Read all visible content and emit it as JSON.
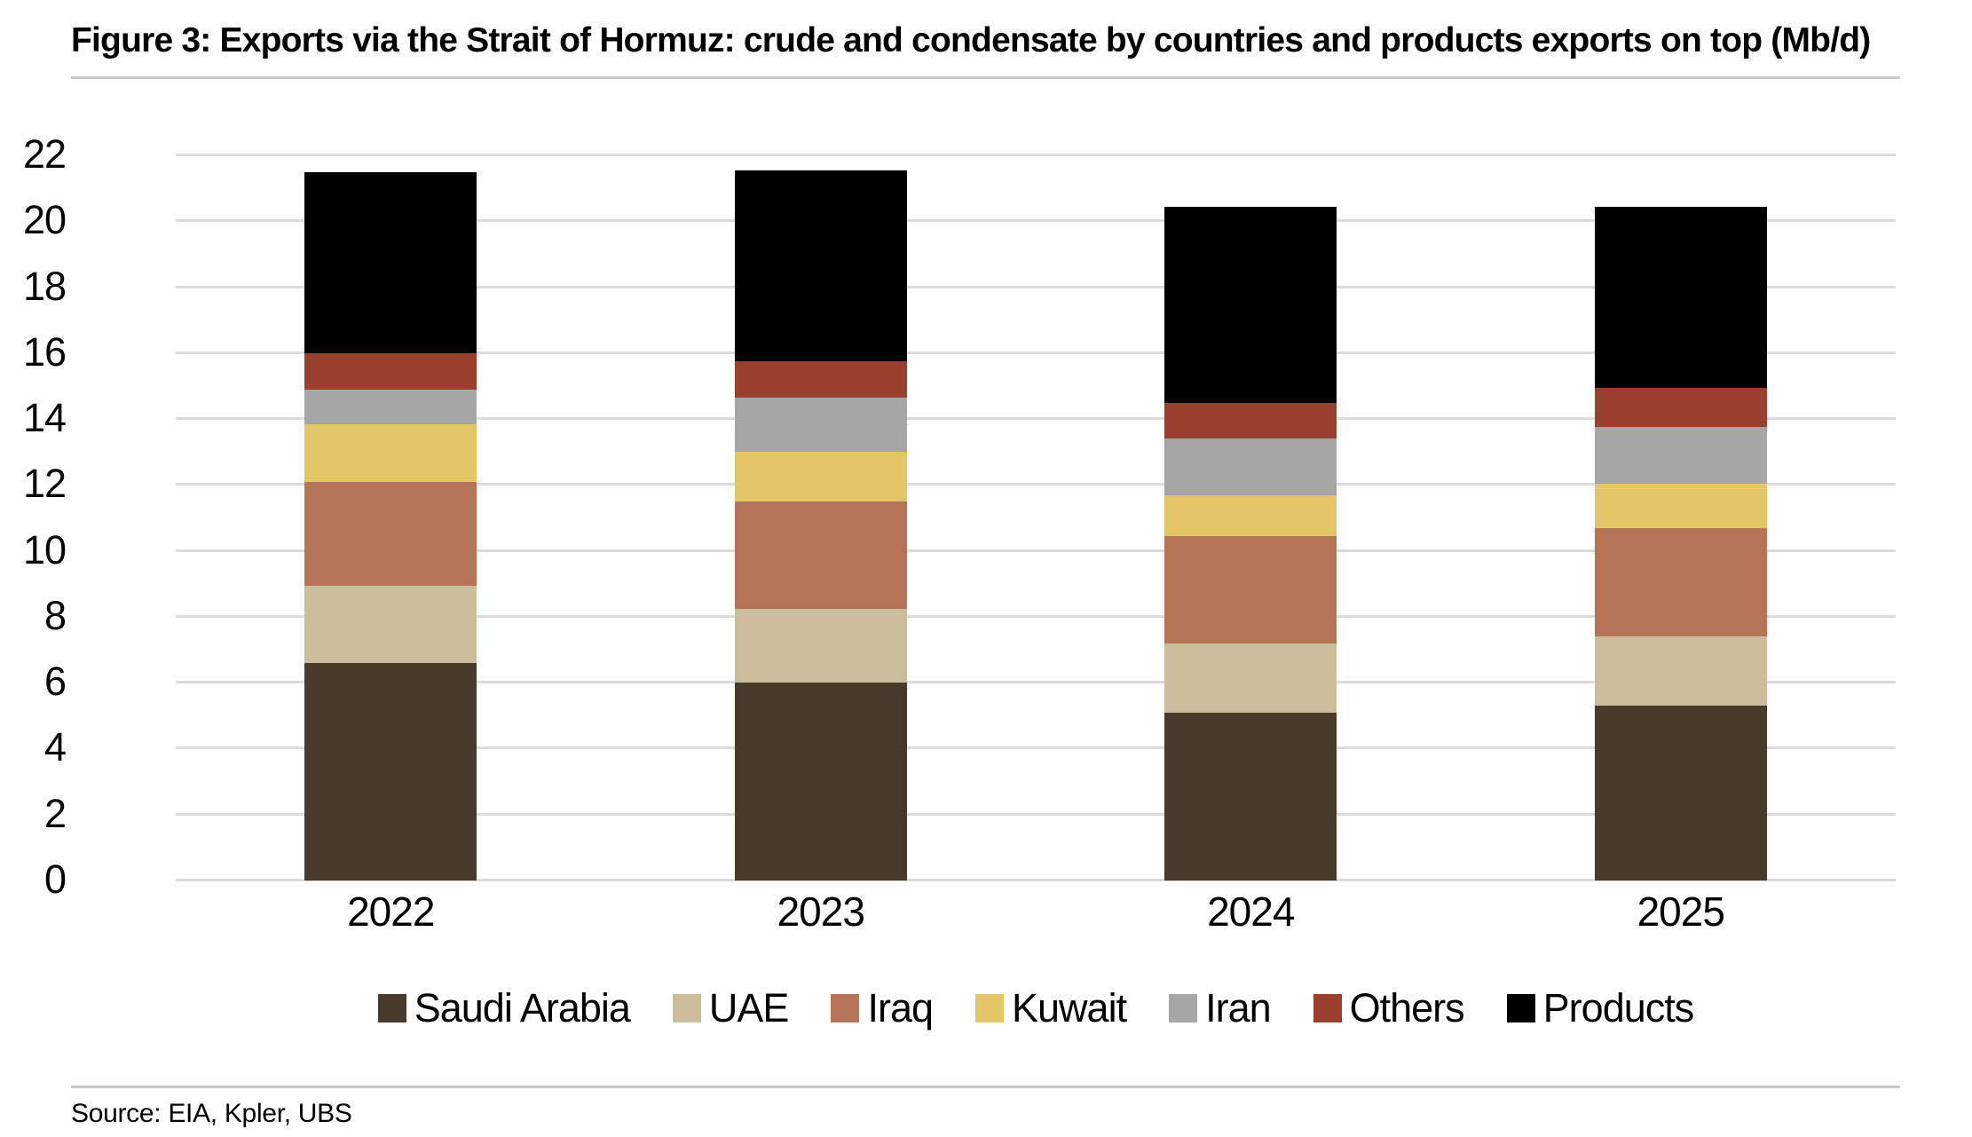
{
  "header": {
    "title": "Figure 3: Exports via the Strait of Hormuz: crude and condensate by countries and products exports on top (Mb/d)"
  },
  "footer": {
    "source": "Source: EIA, Kpler, UBS"
  },
  "colors": {
    "gridline": "#dcdcdc",
    "divider": "#c9c9c9",
    "text": "#000000",
    "background": "#ffffff"
  },
  "chart_data": {
    "type": "bar",
    "stacked": true,
    "title": "Figure 3: Exports via the Strait of Hormuz: crude and condensate by countries and products exports on top (Mb/d)",
    "unit": "Mb/d",
    "categories": [
      "2022",
      "2023",
      "2024",
      "2025"
    ],
    "series": [
      {
        "name": "Saudi Arabia",
        "color": "#483B2C",
        "values": [
          6.6,
          6.0,
          5.1,
          5.3
        ]
      },
      {
        "name": "UAE",
        "color": "#CBBD9B",
        "values": [
          2.35,
          2.25,
          2.1,
          2.1
        ]
      },
      {
        "name": "Iraq",
        "color": "#B67457",
        "values": [
          3.15,
          3.25,
          3.25,
          3.3
        ]
      },
      {
        "name": "Kuwait",
        "color": "#E5C667",
        "values": [
          1.75,
          1.5,
          1.25,
          1.35
        ]
      },
      {
        "name": "Iran",
        "color": "#A6A6A6",
        "values": [
          1.05,
          1.65,
          1.7,
          1.7
        ]
      },
      {
        "name": "Others",
        "color": "#9A3E2D",
        "values": [
          1.1,
          1.1,
          1.1,
          1.2
        ]
      },
      {
        "name": "Products",
        "color": "#000000",
        "values": [
          5.5,
          5.8,
          5.95,
          5.5
        ]
      }
    ],
    "totals": [
      21.5,
      21.55,
      20.45,
      20.45
    ],
    "xlabel": "",
    "ylabel": "",
    "ylim": [
      0,
      22
    ],
    "ytick_step": 2,
    "yticks": [
      0,
      2,
      4,
      6,
      8,
      10,
      12,
      14,
      16,
      18,
      20,
      22
    ],
    "grid": true,
    "legend_position": "bottom"
  }
}
